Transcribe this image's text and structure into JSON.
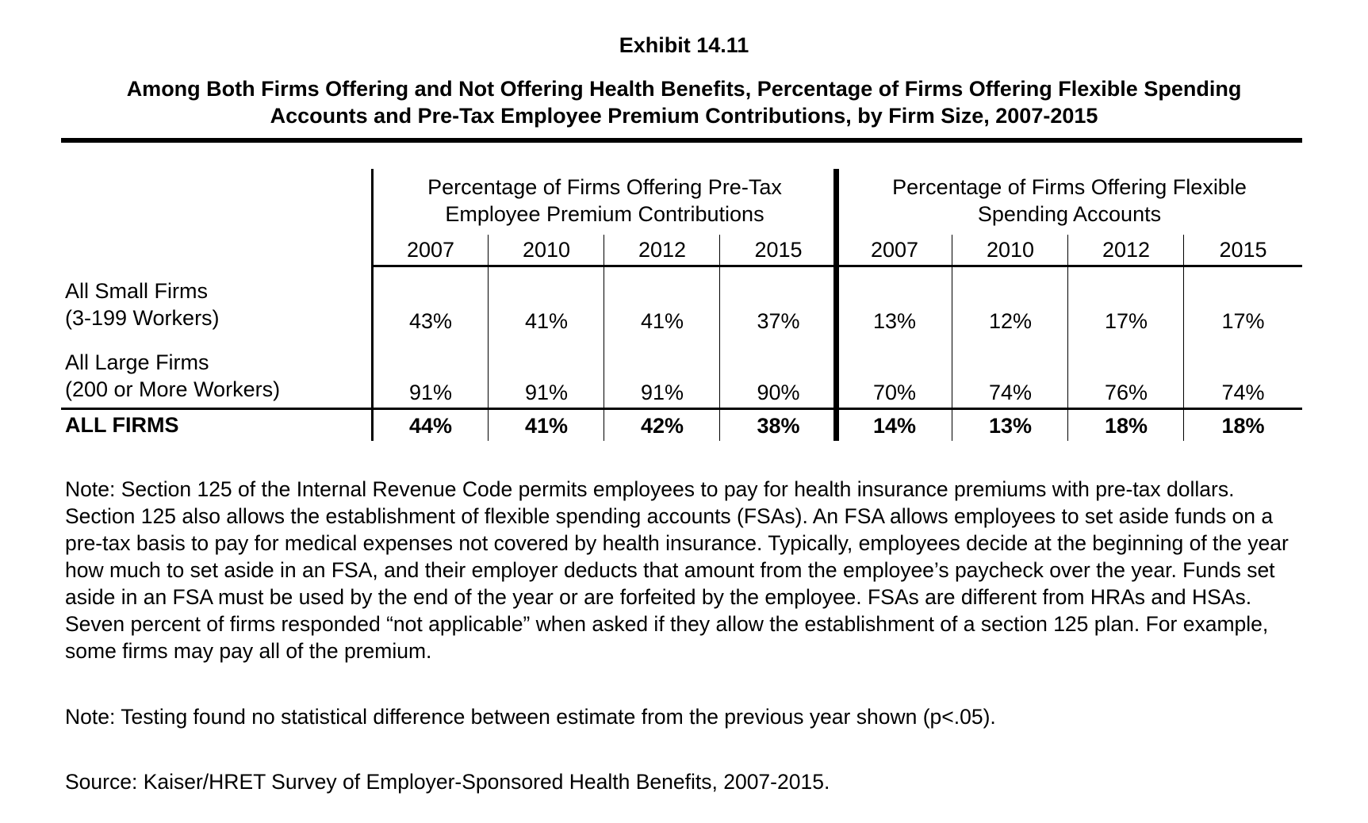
{
  "exhibit_label": "Exhibit 14.11",
  "title_line1": "Among Both Firms Offering and Not Offering Health Benefits, Percentage of Firms Offering Flexible Spending",
  "title_line2": "Accounts and Pre-Tax Employee Premium Contributions, by Firm Size, 2007-2015",
  "table": {
    "group_headers": [
      {
        "line1": "Percentage of Firms Offering Pre-Tax",
        "line2": "Employee Premium Contributions"
      },
      {
        "line1": "Percentage of Firms Offering Flexible",
        "line2": "Spending Accounts"
      }
    ],
    "years": [
      "2007",
      "2010",
      "2012",
      "2015",
      "2007",
      "2010",
      "2012",
      "2015"
    ],
    "rows": [
      {
        "label1": "All Small Firms",
        "label2": "(3-199 Workers)",
        "values": [
          "43%",
          "41%",
          "41%",
          "37%",
          "13%",
          "12%",
          "17%",
          "17%"
        ]
      },
      {
        "label1": "All Large Firms",
        "label2": "(200 or More Workers)",
        "values": [
          "91%",
          "91%",
          "91%",
          "90%",
          "70%",
          "74%",
          "76%",
          "74%"
        ]
      }
    ],
    "total_row": {
      "label": "ALL FIRMS",
      "values": [
        "44%",
        "41%",
        "42%",
        "38%",
        "14%",
        "13%",
        "18%",
        "18%"
      ]
    }
  },
  "notes": {
    "note1": "Note: Section 125 of the Internal Revenue Code permits employees to pay for health insurance premiums with pre-tax dollars. Section 125 also allows the establishment of flexible spending accounts (FSAs). An FSA allows employees to set aside funds on a pre-tax basis to pay for medical expenses not covered by health insurance. Typically, employees decide at the beginning of the year how much to set aside in an FSA, and their employer deducts that amount from the employee’s paycheck over the year. Funds set aside in an FSA must be used by the end of the year or are forfeited by the employee. FSAs are different from HRAs and HSAs. Seven percent of firms responded “not applicable” when asked if they allow the establishment of a section 125 plan. For example, some firms may pay all of the premium.",
    "note2": "Note: Testing found no statistical difference between estimate from the previous year shown (p<.05).",
    "source": "Source: Kaiser/HRET Survey of Employer-Sponsored Health Benefits, 2007-2015."
  }
}
